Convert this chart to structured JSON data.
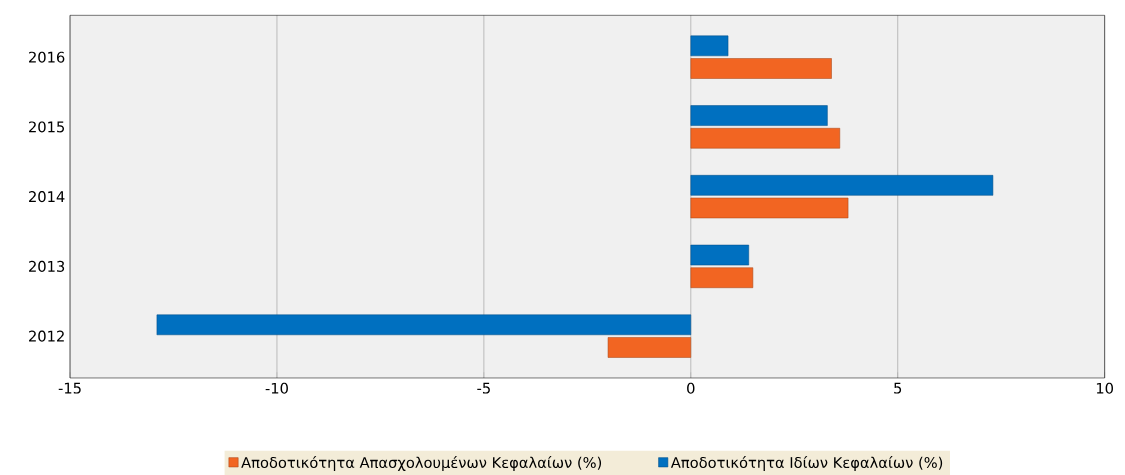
{
  "chart_data": {
    "type": "bar",
    "orientation": "horizontal",
    "categories": [
      "2016",
      "2015",
      "2014",
      "2013",
      "2012"
    ],
    "series": [
      {
        "name": "Αποδοτικότητα Απασχολουμένων Κεφαλαίων (%)",
        "color": "#f26522",
        "values": [
          3.4,
          3.6,
          3.8,
          1.5,
          -2.0
        ]
      },
      {
        "name": "Αποδοτικότητα Ιδίων Κεφαλαίων (%)",
        "color": "#0070c0",
        "values": [
          0.9,
          3.3,
          7.3,
          1.4,
          -12.9
        ]
      }
    ],
    "xlim": [
      -15,
      10
    ],
    "xticks": [
      -15,
      -10,
      -5,
      0,
      5,
      10
    ],
    "grid": "x",
    "legend": "bottom"
  }
}
